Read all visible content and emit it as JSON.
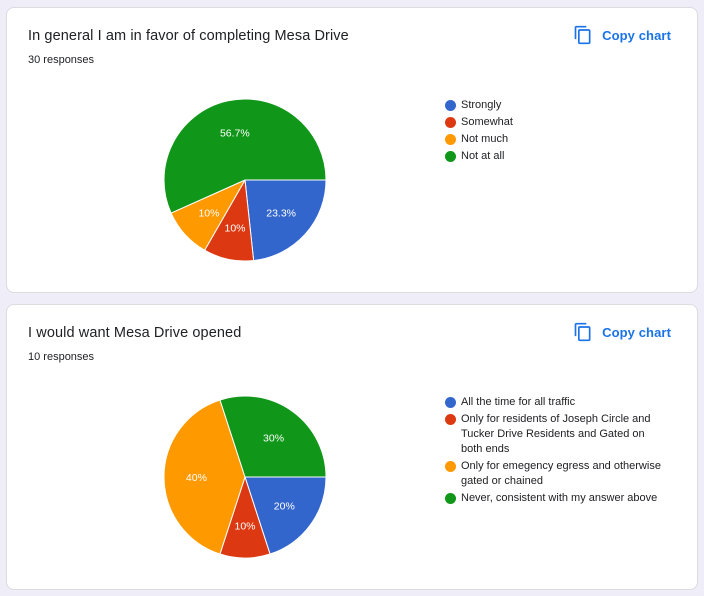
{
  "copy_label": "Copy chart",
  "icons": {
    "copy": "copy-chart-icon"
  },
  "colors": {
    "accent": "#1a73e8",
    "series": [
      "#3366cc",
      "#dc3912",
      "#ff9900",
      "#109618"
    ]
  },
  "charts": [
    {
      "title": "In general I am in favor of completing Mesa Drive",
      "responses": "30 responses",
      "chart_data": {
        "type": "pie",
        "title": "In general I am in favor of completing Mesa Drive",
        "categories": [
          "Strongly",
          "Somewhat",
          "Not much",
          "Not at all"
        ],
        "values": [
          23.3,
          10,
          10,
          56.7
        ],
        "labels": [
          "23.3%",
          "10%",
          "10%",
          "56.7%"
        ],
        "colors": [
          "#3366cc",
          "#dc3912",
          "#ff9900",
          "#109618"
        ],
        "legend": "right"
      }
    },
    {
      "title": "I would want Mesa Drive opened",
      "responses": "10 responses",
      "chart_data": {
        "type": "pie",
        "title": "I would want Mesa Drive opened",
        "categories": [
          "All the time for all traffic",
          "Only for residents of Joseph Circle and Tucker Drive Residents and Gated on both ends",
          "Only for emegency egress and otherwise gated or chained",
          "Never, consistent with my answer above"
        ],
        "values": [
          20,
          10,
          40,
          30
        ],
        "labels": [
          "20%",
          "10%",
          "40%",
          "30%"
        ],
        "colors": [
          "#3366cc",
          "#dc3912",
          "#ff9900",
          "#109618"
        ],
        "legend": "right"
      }
    }
  ]
}
